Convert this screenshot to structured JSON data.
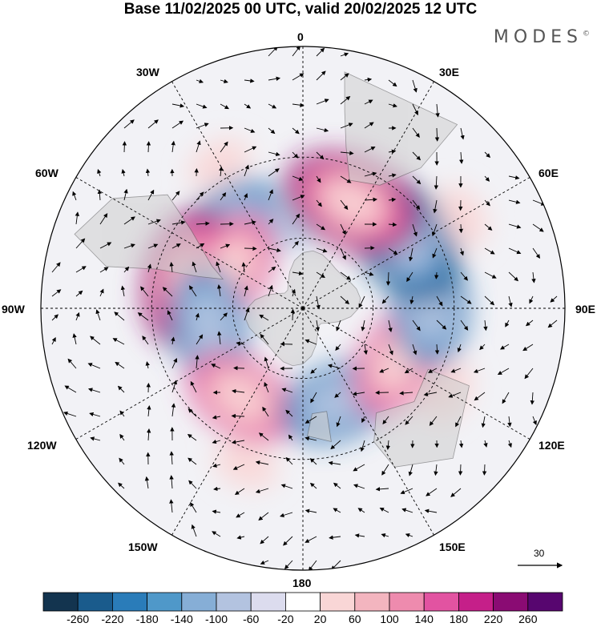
{
  "title": "Base 11/02/2025 00 UTC, valid 20/02/2025 12 UTC",
  "logo": {
    "text": "MODES",
    "mark": "©"
  },
  "longitude_labels": {
    "n0": "0",
    "n30e": "30E",
    "n60e": "60E",
    "n90e": "90E",
    "n120e": "120E",
    "n150e": "150E",
    "n180": "180",
    "n150w": "150W",
    "n120w": "120W",
    "n90w": "90W",
    "n60w": "60W",
    "n30w": "30W"
  },
  "reference_vector": {
    "label": "30"
  },
  "colorbar": {
    "ticks": [
      "-260",
      "-220",
      "-180",
      "-140",
      "-100",
      "-60",
      "-20",
      "20",
      "60",
      "100",
      "140",
      "180",
      "220",
      "260"
    ],
    "colors": [
      "#13344f",
      "#1a5b8c",
      "#2a7cb9",
      "#4f98c9",
      "#86aed6",
      "#b3c3e0",
      "#dcdcee",
      "#ffffff",
      "#f9d6d6",
      "#f3b5bf",
      "#ee8bae",
      "#e253a1",
      "#c51f89",
      "#8a0b73",
      "#57066f"
    ]
  },
  "colors": {
    "land": "#cfcfcf",
    "graticule": "#000000",
    "vector": "#000000"
  },
  "anomaly_features": [
    {
      "lon": 330,
      "lat": -25,
      "value": 50
    },
    {
      "lon": 318,
      "lat": -45,
      "value": -150
    },
    {
      "lon": 350,
      "lat": -55,
      "value": -50
    },
    {
      "lon": 285,
      "lat": -42,
      "value": 230
    },
    {
      "lon": 300,
      "lat": -55,
      "value": 170
    },
    {
      "lon": 260,
      "lat": -50,
      "value": -170
    },
    {
      "lon": 215,
      "lat": -45,
      "value": 190
    },
    {
      "lon": 160,
      "lat": -48,
      "value": -200
    },
    {
      "lon": 120,
      "lat": -45,
      "value": 200
    },
    {
      "lon": 90,
      "lat": -38,
      "value": -180
    },
    {
      "lon": 55,
      "lat": -40,
      "value": -230
    },
    {
      "lon": 25,
      "lat": -42,
      "value": 230
    },
    {
      "lon": 60,
      "lat": -20,
      "value": 50
    },
    {
      "lon": 200,
      "lat": -25,
      "value": 60
    },
    {
      "lon": 120,
      "lat": -25,
      "value": 50
    }
  ]
}
